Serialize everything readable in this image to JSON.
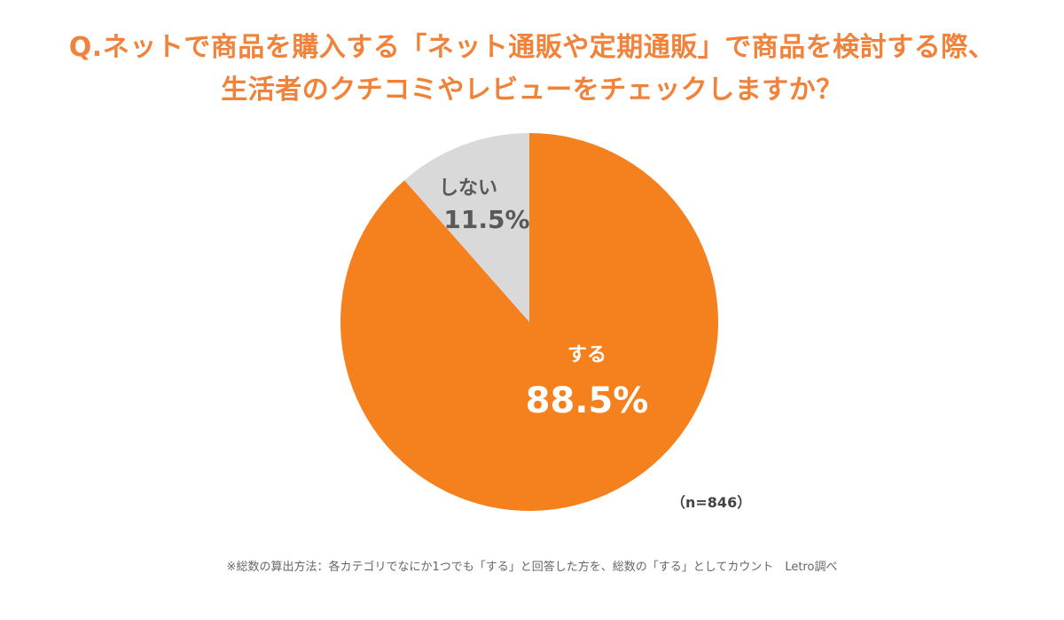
{
  "title_lines": [
    "Q.ネットで商品を購入する「ネット通販や定期通販」で商品を検討する際、",
    "生活者のクチコミやレビューをチェックしますか？"
  ],
  "colors": {
    "title": "#f0823a",
    "suru": "#f5801e",
    "shinai": "#d9d9d9",
    "label_dark": "#595959",
    "label_light": "#ffffff"
  },
  "chart_data": {
    "type": "pie",
    "slices": [
      {
        "label": "する",
        "value": 88.5,
        "value_text": "88.5%"
      },
      {
        "label": "しない",
        "value": 11.5,
        "value_text": "11.5%"
      }
    ],
    "start": "12 o'clock",
    "direction": "clockwise"
  },
  "sample_size": "（n=846）",
  "footnote": "※総数の算出方法：各カテゴリでなにか1つでも「する」と回答した方を、総数の「する」としてカウント　Letro調べ"
}
